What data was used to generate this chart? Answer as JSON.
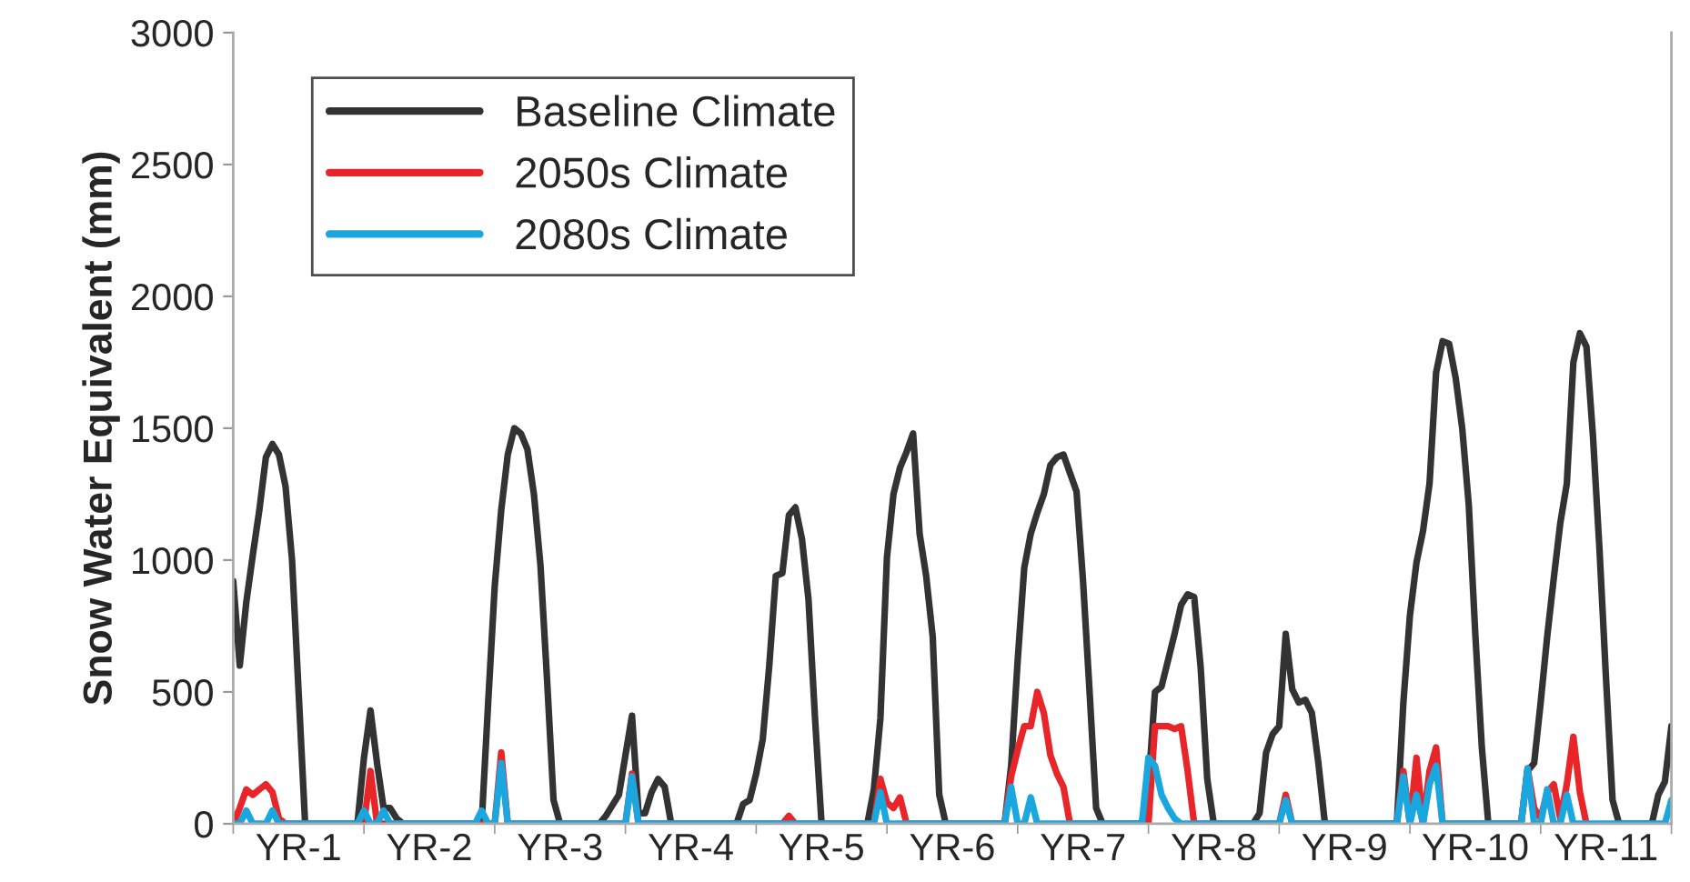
{
  "chart_data": {
    "type": "line",
    "ylabel": "Snow Water Equivalent (mm)",
    "categories": [
      null,
      null,
      null,
      null,
      null,
      null,
      null,
      null,
      null,
      null,
      "YR-1",
      null,
      null,
      null,
      null,
      null,
      null,
      null,
      null,
      null,
      null,
      null,
      null,
      null,
      null,
      null,
      null,
      null,
      null,
      null,
      "YR-2",
      null,
      null,
      null,
      null,
      null,
      null,
      null,
      null,
      null,
      null,
      null,
      null,
      null,
      null,
      null,
      null,
      null,
      null,
      null,
      "YR-3",
      null,
      null,
      null,
      null,
      null,
      null,
      null,
      null,
      null,
      null,
      null,
      null,
      null,
      null,
      null,
      null,
      null,
      null,
      null,
      "YR-4",
      null,
      null,
      null,
      null,
      null,
      null,
      null,
      null,
      null,
      null,
      null,
      null,
      null,
      null,
      null,
      null,
      null,
      null,
      null,
      "YR-5",
      null,
      null,
      null,
      null,
      null,
      null,
      null,
      null,
      null,
      null,
      null,
      null,
      null,
      null,
      null,
      null,
      null,
      null,
      null,
      "YR-6",
      null,
      null,
      null,
      null,
      null,
      null,
      null,
      null,
      null,
      null,
      null,
      null,
      null,
      null,
      null,
      null,
      null,
      null,
      null,
      "YR-7",
      null,
      null,
      null,
      null,
      null,
      null,
      null,
      null,
      null,
      null,
      null,
      null,
      null,
      null,
      null,
      null,
      null,
      null,
      null,
      "YR-8",
      null,
      null,
      null,
      null,
      null,
      null,
      null,
      null,
      null,
      null,
      null,
      null,
      null,
      null,
      null,
      null,
      null,
      null,
      null,
      "YR-9",
      null,
      null,
      null,
      null,
      null,
      null,
      null,
      null,
      null,
      null,
      null,
      null,
      null,
      null,
      null,
      null,
      null,
      null,
      null,
      "YR-10",
      null,
      null,
      null,
      null,
      null,
      null,
      null,
      null,
      null,
      null,
      null,
      null,
      null,
      null,
      null,
      null,
      null,
      null,
      null,
      "YR-11",
      null,
      null,
      null,
      null,
      null,
      null,
      null,
      null,
      null,
      null
    ],
    "ylim": [
      0,
      3000
    ],
    "yticks": [
      0,
      500,
      1000,
      1500,
      2000,
      2500,
      3000
    ],
    "grid": false,
    "legend": "top left",
    "marker": "none",
    "line_style": "solid",
    "series": [
      {
        "name": "Baseline Climate",
        "color": "#333333",
        "values": [
          920,
          600,
          840,
          1020,
          1190,
          1390,
          1440,
          1400,
          1280,
          1000,
          500,
          0,
          null,
          null,
          null,
          null,
          null,
          null,
          null,
          0,
          250,
          430,
          230,
          60,
          60,
          20,
          0,
          null,
          null,
          null,
          null,
          null,
          null,
          null,
          null,
          null,
          null,
          null,
          0,
          460,
          900,
          1190,
          1400,
          1500,
          1480,
          1420,
          1250,
          980,
          550,
          90,
          0,
          null,
          null,
          null,
          null,
          null,
          0,
          30,
          70,
          110,
          260,
          410,
          40,
          40,
          120,
          170,
          140,
          0,
          null,
          null,
          null,
          null,
          null,
          null,
          null,
          null,
          null,
          0,
          75,
          90,
          190,
          320,
          600,
          940,
          950,
          1170,
          1200,
          1080,
          850,
          400,
          0,
          null,
          null,
          null,
          null,
          null,
          null,
          0,
          130,
          400,
          1010,
          1250,
          1350,
          1410,
          1480,
          1100,
          940,
          710,
          110,
          0,
          null,
          null,
          null,
          null,
          null,
          null,
          null,
          null,
          0,
          220,
          620,
          970,
          1100,
          1180,
          1250,
          1360,
          1390,
          1400,
          1330,
          1260,
          920,
          500,
          60,
          0,
          null,
          null,
          null,
          null,
          null,
          0,
          140,
          500,
          520,
          620,
          720,
          830,
          870,
          860,
          590,
          170,
          0,
          null,
          null,
          null,
          null,
          null,
          0,
          40,
          270,
          340,
          370,
          720,
          510,
          460,
          470,
          420,
          230,
          0,
          null,
          null,
          null,
          null,
          null,
          null,
          null,
          null,
          null,
          null,
          0,
          460,
          790,
          990,
          1110,
          1290,
          1710,
          1830,
          1820,
          1690,
          1500,
          1210,
          720,
          290,
          0,
          null,
          null,
          null,
          null,
          0,
          200,
          230,
          460,
          710,
          930,
          1140,
          1290,
          1750,
          1860,
          1810,
          1470,
          1040,
          550,
          90,
          0,
          null,
          null,
          null,
          null,
          0,
          110,
          160,
          370
        ]
      },
      {
        "name": "2050s Climate",
        "color": "#e8262a",
        "values": [
          0,
          60,
          130,
          110,
          130,
          150,
          120,
          20,
          0,
          null,
          null,
          null,
          null,
          null,
          null,
          null,
          null,
          null,
          null,
          null,
          0,
          200,
          0,
          null,
          null,
          null,
          null,
          null,
          null,
          null,
          null,
          null,
          null,
          null,
          null,
          null,
          null,
          null,
          null,
          null,
          0,
          270,
          0,
          null,
          null,
          null,
          null,
          null,
          null,
          null,
          null,
          null,
          null,
          null,
          null,
          null,
          null,
          null,
          null,
          null,
          0,
          190,
          0,
          null,
          null,
          null,
          null,
          null,
          null,
          null,
          null,
          null,
          null,
          null,
          null,
          null,
          null,
          null,
          null,
          null,
          null,
          null,
          null,
          null,
          0,
          30,
          0,
          null,
          null,
          null,
          null,
          null,
          null,
          null,
          null,
          null,
          null,
          null,
          0,
          170,
          80,
          60,
          100,
          0,
          null,
          null,
          null,
          null,
          null,
          null,
          null,
          null,
          null,
          null,
          null,
          null,
          null,
          null,
          0,
          180,
          280,
          370,
          370,
          500,
          420,
          260,
          190,
          140,
          0,
          null,
          null,
          null,
          null,
          null,
          null,
          null,
          null,
          null,
          null,
          null,
          0,
          370,
          370,
          370,
          360,
          370,
          200,
          0,
          null,
          null,
          null,
          null,
          null,
          null,
          null,
          null,
          null,
          null,
          null,
          null,
          0,
          110,
          0,
          null,
          null,
          null,
          null,
          null,
          null,
          null,
          null,
          null,
          null,
          null,
          null,
          null,
          null,
          null,
          0,
          200,
          0,
          250,
          0,
          200,
          290,
          0,
          null,
          null,
          null,
          null,
          null,
          null,
          null,
          null,
          null,
          null,
          null,
          0,
          210,
          60,
          20,
          120,
          150,
          20,
          150,
          330,
          120,
          0,
          null,
          null,
          null,
          null,
          null,
          null,
          null,
          null,
          null,
          null,
          null,
          null,
          null
        ]
      },
      {
        "name": "2080s Climate",
        "color": "#1aa7e0",
        "values": [
          0,
          0,
          50,
          0,
          0,
          0,
          50,
          0,
          0,
          0,
          0,
          0,
          0,
          0,
          0,
          0,
          0,
          0,
          0,
          0,
          50,
          0,
          0,
          50,
          0,
          0,
          0,
          0,
          0,
          0,
          0,
          0,
          0,
          0,
          0,
          0,
          0,
          0,
          50,
          0,
          0,
          230,
          0,
          0,
          0,
          0,
          0,
          0,
          0,
          0,
          0,
          0,
          0,
          0,
          0,
          0,
          0,
          0,
          0,
          0,
          0,
          180,
          0,
          0,
          0,
          0,
          0,
          0,
          0,
          0,
          0,
          0,
          0,
          0,
          0,
          0,
          0,
          0,
          0,
          0,
          0,
          0,
          0,
          0,
          0,
          0,
          0,
          0,
          0,
          0,
          0,
          0,
          0,
          0,
          0,
          0,
          0,
          0,
          0,
          120,
          0,
          0,
          0,
          0,
          0,
          0,
          0,
          0,
          0,
          0,
          0,
          0,
          0,
          0,
          0,
          0,
          0,
          0,
          0,
          140,
          0,
          0,
          100,
          0,
          0,
          0,
          0,
          0,
          0,
          0,
          0,
          0,
          0,
          0,
          0,
          0,
          0,
          0,
          0,
          0,
          250,
          220,
          110,
          60,
          20,
          0,
          0,
          0,
          0,
          0,
          0,
          0,
          0,
          0,
          0,
          0,
          0,
          0,
          0,
          0,
          0,
          90,
          0,
          0,
          0,
          0,
          0,
          0,
          0,
          0,
          0,
          0,
          0,
          0,
          0,
          0,
          0,
          0,
          0,
          180,
          0,
          110,
          0,
          150,
          220,
          0,
          0,
          0,
          0,
          0,
          0,
          0,
          0,
          0,
          0,
          0,
          0,
          0,
          210,
          0,
          0,
          130,
          0,
          0,
          110,
          0,
          0,
          0,
          0,
          0,
          0,
          0,
          0,
          0,
          0,
          0,
          0,
          0,
          0,
          0,
          90
        ]
      }
    ]
  }
}
